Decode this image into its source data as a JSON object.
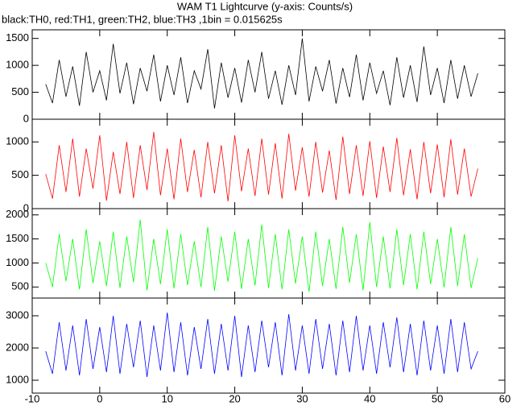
{
  "chart_data": {
    "type": "line",
    "title": "WAM T1 Lightcurve (y-axis: Counts/s)",
    "subtitle": "black:TH0, red:TH1, green:TH2, blue:TH3 ,1bin = 0.015625s",
    "x": [
      -8,
      -7,
      -6,
      -5,
      -4,
      -3,
      -2,
      -1,
      0,
      1,
      2,
      3,
      4,
      5,
      6,
      7,
      8,
      9,
      10,
      11,
      12,
      13,
      14,
      15,
      16,
      17,
      18,
      19,
      20,
      21,
      22,
      23,
      24,
      25,
      26,
      27,
      28,
      29,
      30,
      31,
      32,
      33,
      34,
      35,
      36,
      37,
      38,
      39,
      40,
      41,
      42,
      43,
      44,
      45,
      46,
      47,
      48,
      49,
      50,
      51,
      52,
      53,
      54,
      55,
      56
    ],
    "xlim": [
      -10,
      60
    ],
    "xticks": [
      -10,
      0,
      10,
      20,
      30,
      40,
      50,
      60
    ],
    "series": [
      {
        "color": "#000000",
        "ylim": [
          0,
          1660
        ],
        "yticks": [
          0,
          500,
          1000,
          1500
        ],
        "values": [
          650,
          300,
          1100,
          420,
          980,
          250,
          1250,
          500,
          900,
          350,
          1400,
          480,
          1050,
          280,
          950,
          520,
          1200,
          330,
          1000,
          450,
          1150,
          300,
          900,
          560,
          1300,
          200,
          1050,
          400,
          950,
          310,
          1100,
          500,
          1250,
          380,
          900,
          270,
          1000,
          450,
          1500,
          330,
          980,
          520,
          1100,
          290,
          950,
          410,
          1200,
          350,
          1050,
          480,
          900,
          260,
          1150,
          400,
          1000,
          320,
          1350,
          450,
          950,
          300,
          1100,
          380,
          1000,
          420,
          850
        ]
      },
      {
        "color": "#ff0000",
        "ylim": [
          0,
          1340
        ],
        "yticks": [
          0,
          500,
          1000
        ],
        "values": [
          520,
          150,
          950,
          250,
          1050,
          180,
          900,
          300,
          1100,
          120,
          850,
          220,
          1000,
          160,
          950,
          280,
          1150,
          200,
          900,
          140,
          1050,
          250,
          880,
          170,
          1000,
          230,
          950,
          110,
          1100,
          260,
          900,
          190,
          1050,
          210,
          980,
          150,
          1120,
          270,
          920,
          180,
          1000,
          240,
          870,
          130,
          1080,
          220,
          950,
          190,
          1010,
          160,
          930,
          250,
          1060,
          200,
          890,
          140,
          1000,
          230,
          960,
          170,
          1040,
          210,
          900,
          180,
          600
        ]
      },
      {
        "color": "#00ff00",
        "ylim": [
          270,
          2130
        ],
        "yticks": [
          500,
          1000,
          1500,
          2000
        ],
        "values": [
          1000,
          500,
          1600,
          620,
          1500,
          450,
          1700,
          580,
          1450,
          520,
          1650,
          480,
          1550,
          600,
          1900,
          430,
          1500,
          560,
          1700,
          470,
          1600,
          540,
          1450,
          500,
          1750,
          420,
          1550,
          610,
          1650,
          460,
          1500,
          530,
          1800,
          480,
          1600,
          450,
          1700,
          570,
          1550,
          400,
          1650,
          520,
          1500,
          460,
          1750,
          590,
          1600,
          430,
          1850,
          500,
          1550,
          470,
          1700,
          540,
          1600,
          450,
          1650,
          560,
          1500,
          490,
          1750,
          520,
          1600,
          480,
          1100
        ]
      },
      {
        "color": "#0000ff",
        "ylim": [
          600,
          3550
        ],
        "yticks": [
          1000,
          2000,
          3000
        ],
        "values": [
          1900,
          1200,
          2800,
          1300,
          2700,
          1150,
          2900,
          1350,
          2650,
          1250,
          3000,
          1200,
          2750,
          1400,
          2850,
          1100,
          2700,
          1300,
          3100,
          1250,
          2800,
          1150,
          2650,
          1350,
          2900,
          1200,
          2750,
          1300,
          3000,
          1100,
          2700,
          1250,
          2850,
          1400,
          2800,
          1150,
          3050,
          1300,
          2700,
          1200,
          2900,
          1350,
          2750,
          1150,
          2850,
          1250,
          3000,
          1300,
          2700,
          1200,
          2800,
          1400,
          2950,
          1250,
          2750,
          1150,
          2850,
          1300,
          2700,
          1200,
          2900,
          1250,
          2800,
          1350,
          1900
        ]
      }
    ]
  }
}
